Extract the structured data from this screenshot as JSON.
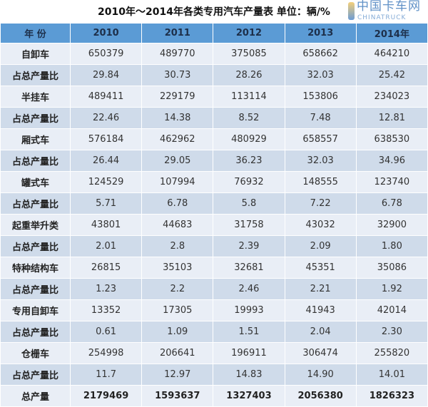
{
  "title": "2010年～2014年各类专用汽车产量表    单位：辆/%",
  "table": {
    "headers": [
      "年 份",
      "2010",
      "2011",
      "2012",
      "2013",
      "2014年"
    ],
    "rows": [
      {
        "type": "cat",
        "cells": [
          "自卸车",
          "650379",
          "489770",
          "375085",
          "658662",
          "464210"
        ]
      },
      {
        "type": "ratio",
        "cells": [
          "占总产量比",
          "29.84",
          "30.73",
          "28.26",
          "32.03",
          "25.42"
        ]
      },
      {
        "type": "cat",
        "cells": [
          "半挂车",
          "489411",
          "229179",
          "113114",
          "153806",
          "234023"
        ]
      },
      {
        "type": "ratio",
        "cells": [
          "占总产量比",
          "22.46",
          "14.38",
          "8.52",
          "7.48",
          "12.81"
        ]
      },
      {
        "type": "cat",
        "cells": [
          "厢式车",
          "576184",
          "462962",
          "480929",
          "658557",
          "638530"
        ]
      },
      {
        "type": "ratio",
        "cells": [
          "占总产量比",
          "26.44",
          "29.05",
          "36.23",
          "32.03",
          "34.96"
        ]
      },
      {
        "type": "cat",
        "cells": [
          "罐式车",
          "124529",
          "107994",
          "76932",
          "148555",
          "123740"
        ]
      },
      {
        "type": "ratio",
        "cells": [
          "占总产量比",
          "5.71",
          "6.78",
          "5.8",
          "7.22",
          "6.78"
        ]
      },
      {
        "type": "cat",
        "cells": [
          "起重举升类",
          "43801",
          "44683",
          "31758",
          "43032",
          "32900"
        ]
      },
      {
        "type": "ratio",
        "cells": [
          "占总产量比",
          "2.01",
          "2.8",
          "2.39",
          "2.09",
          "1.80"
        ]
      },
      {
        "type": "cat",
        "cells": [
          "特种结构车",
          "26815",
          "35103",
          "32681",
          "45351",
          "35086"
        ]
      },
      {
        "type": "ratio",
        "cells": [
          "占总产量比",
          "1.23",
          "2.2",
          "2.46",
          "2.21",
          "1.92"
        ]
      },
      {
        "type": "cat",
        "cells": [
          "专用自卸车",
          "13352",
          "17305",
          "19993",
          "41943",
          "42014"
        ]
      },
      {
        "type": "ratio",
        "cells": [
          "占总产量比",
          "0.61",
          "1.09",
          "1.51",
          "2.04",
          "2.30"
        ]
      },
      {
        "type": "cat",
        "cells": [
          "仓栅车",
          "254998",
          "206641",
          "196911",
          "306474",
          "255820"
        ]
      },
      {
        "type": "ratio",
        "cells": [
          "占总产量比",
          "11.7",
          "12.97",
          "14.83",
          "14.90",
          "14.01"
        ]
      },
      {
        "type": "total",
        "cells": [
          "总产量",
          "2179469",
          "1593637",
          "1327403",
          "2056380",
          "1826323"
        ]
      }
    ]
  },
  "watermark": {
    "cn": "中国卡车网",
    "en": "CHINATRUCK"
  },
  "colors": {
    "header": "#5b9bd5",
    "row_light": "#e9eef6",
    "row_dark": "#cfdbea"
  }
}
